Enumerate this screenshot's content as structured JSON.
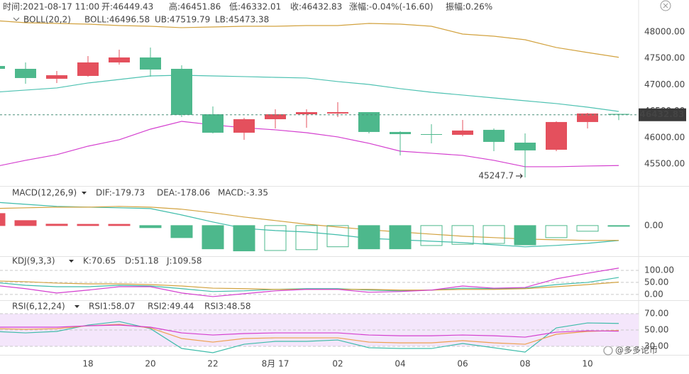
{
  "chart_data": [
    {
      "type": "candlestick",
      "header": [
        "时间:2021-08-17 11:00",
        "开:46449.43",
        "高:46451.86",
        "低:46332.01",
        "收:46432.83",
        "涨幅:-0.04%(-16.60)",
        "振幅:0.26%"
      ],
      "indicator": "BOLL(20,2)",
      "categories": [
        null,
        null,
        null,
        "18",
        null,
        "20",
        null,
        "22",
        null,
        "8月 17",
        null,
        "02",
        null,
        "04",
        null,
        "06",
        null,
        "08",
        null,
        "10",
        null
      ],
      "open": [
        47356,
        47302,
        47114,
        47168,
        47423,
        47517,
        47302,
        46443,
        46094,
        46349,
        46443,
        46457,
        46483,
        46108,
        46067,
        46054,
        46148,
        45906,
        45772,
        46296,
        46449.43
      ],
      "high": [
        47380,
        47423,
        47262,
        47544,
        47664,
        47705,
        47369,
        46591,
        46376,
        46537,
        46537,
        46671,
        46483,
        46121,
        46255,
        46336,
        46175,
        46081,
        46309,
        46470,
        46451.86
      ],
      "low": [
        47280,
        47020,
        47034,
        47155,
        47383,
        47155,
        46390,
        46081,
        45960,
        46175,
        46188,
        46390,
        46081,
        45665,
        45893,
        46027,
        45745,
        45247.7,
        45745,
        46175,
        46332.01
      ],
      "close": [
        47302,
        47128,
        47181,
        47423,
        47517,
        47289,
        46430,
        46094,
        46349,
        46443,
        46483,
        46483,
        46108,
        46067,
        46054,
        46135,
        45920,
        45759,
        46296,
        46457,
        46432.83
      ],
      "up_color": "#e4505d",
      "down_color": "#4db88c",
      "series": [
        {
          "name": "BOLL:46496.58",
          "color": "#4fc2b2",
          "values": [
            46859,
            46900,
            46940,
            47034,
            47101,
            47168,
            47181,
            47168,
            47155,
            47141,
            47128,
            47061,
            47007,
            46927,
            46859,
            46806,
            46752,
            46698,
            46645,
            46577,
            46496.58
          ]
        },
        {
          "name": "UB:47519.79",
          "color": "#d2a23f",
          "values": [
            48215,
            48174,
            48161,
            48148,
            48121,
            48107,
            48081,
            48094,
            48107,
            48107,
            48121,
            48121,
            48161,
            48148,
            48107,
            47960,
            47919,
            47852,
            47705,
            47611,
            47519.79
          ]
        },
        {
          "name": "LB:45473.38",
          "color": "#d43fcf",
          "values": [
            45450,
            45571,
            45678,
            45839,
            45960,
            46161,
            46309,
            46242,
            46188,
            46148,
            46094,
            46014,
            45893,
            45745,
            45705,
            45665,
            45571,
            45450,
            45450,
            45464,
            45473.38
          ]
        }
      ],
      "ylim": [
        45087,
        48604
      ],
      "yticks": [
        {
          "value": 45500,
          "label": "45500.00"
        },
        {
          "value": 46000,
          "label": "46000.00"
        },
        {
          "value": 46500,
          "label": "46500.00"
        },
        {
          "value": 47000,
          "label": "47000.00"
        },
        {
          "value": 47500,
          "label": "47500.00"
        },
        {
          "value": 48000,
          "label": "48000.00"
        }
      ],
      "watermark": "@多多论币"
    },
    {
      "type": "macd",
      "indicator": "MACD(12,26,9)",
      "up_color": "#e4505d",
      "series": [
        {
          "name": "DIF:-179.73",
          "type": "line",
          "color": "#3fbcaa",
          "values": [
            282,
            256,
            231,
            222,
            214,
            205,
            128,
            43,
            -34,
            -60,
            -77,
            -111,
            -154,
            -171,
            -188,
            -205,
            -231,
            -256,
            -239,
            -214,
            -179.73
          ]
        },
        {
          "name": "DEA:-178.06",
          "type": "line",
          "color": "#d2a23f",
          "values": [
            205,
            214,
            222,
            222,
            231,
            222,
            197,
            154,
            103,
            60,
            17,
            -17,
            -51,
            -77,
            -103,
            -128,
            -145,
            -162,
            -171,
            -179,
            -178.06
          ]
        },
        {
          "name": "MACD:-3.35",
          "type": "bar",
          "color": "#4db88c",
          "values": [
            145,
            60,
            17,
            15,
            15,
            -25,
            -145,
            -280,
            -305,
            -300,
            -290,
            -255,
            -280,
            -280,
            -240,
            -225,
            -215,
            -232,
            -145,
            -68,
            -3.35
          ]
        }
      ],
      "ylim": [
        -360,
        460
      ],
      "yticks": [
        {
          "value": 0,
          "label": "0.00"
        }
      ]
    },
    {
      "type": "line",
      "indicator": "KDJ(9,3,3)",
      "grid": true,
      "series": [
        {
          "name": "K:70.65",
          "color": "#3fbcaa",
          "values": [
            50,
            38,
            32,
            32,
            38,
            35,
            24,
            12,
            15,
            21,
            24,
            24,
            18,
            15,
            18,
            26,
            24,
            26,
            41,
            50,
            70.65
          ]
        },
        {
          "name": "D:51.18",
          "color": "#d2a23f",
          "values": [
            56,
            53,
            47,
            44,
            44,
            41,
            35,
            26,
            24,
            21,
            21,
            21,
            21,
            18,
            18,
            21,
            21,
            24,
            32,
            41,
            51.18
          ]
        },
        {
          "name": "J:109.58",
          "color": "#d43fcf",
          "values": [
            38,
            24,
            6,
            18,
            32,
            32,
            6,
            -9,
            3,
            15,
            21,
            21,
            9,
            12,
            18,
            35,
            26,
            29,
            65,
            88,
            109.58
          ]
        }
      ],
      "ylim": [
        -21,
        156
      ],
      "yticks": [
        {
          "value": 0,
          "label": "0.00"
        },
        {
          "value": 50,
          "label": "50.00"
        },
        {
          "value": 100,
          "label": "100.00"
        }
      ]
    },
    {
      "type": "line",
      "indicator": "RSI(6,12,24)",
      "grid": true,
      "band": true,
      "series": [
        {
          "name": "RSI1:58.07",
          "color": "#3fbcaa",
          "values": [
            48.3,
            46.5,
            48.3,
            56.1,
            60.4,
            51.7,
            27.4,
            22.2,
            32.6,
            36.1,
            36.1,
            37.8,
            28.3,
            27.4,
            27.4,
            33.5,
            28.3,
            23.0,
            52.6,
            58.7,
            58.07
          ]
        },
        {
          "name": "RSI2:49.44",
          "color": "#eda04e",
          "values": [
            51.7,
            50.9,
            51.7,
            55.2,
            57.0,
            52.6,
            39.6,
            35.2,
            39.6,
            40.4,
            40.4,
            40.4,
            35.2,
            34.3,
            34.3,
            37.0,
            34.3,
            32.6,
            44.8,
            48.3,
            49.44
          ]
        },
        {
          "name": "RSI3:48.58",
          "color": "#d43fcf",
          "values": [
            53.5,
            53.5,
            53.5,
            55.2,
            56.1,
            53.5,
            46.5,
            43.9,
            45.7,
            46.5,
            46.5,
            46.5,
            43.9,
            43.0,
            43.0,
            43.9,
            43.0,
            41.3,
            47.4,
            49.1,
            48.58
          ]
        }
      ],
      "ylim": [
        19.6,
        85.7
      ],
      "yticks": [
        {
          "value": 30,
          "label": "30.00"
        },
        {
          "value": 50,
          "label": "50.00"
        },
        {
          "value": 70,
          "label": "70.00"
        }
      ]
    }
  ]
}
